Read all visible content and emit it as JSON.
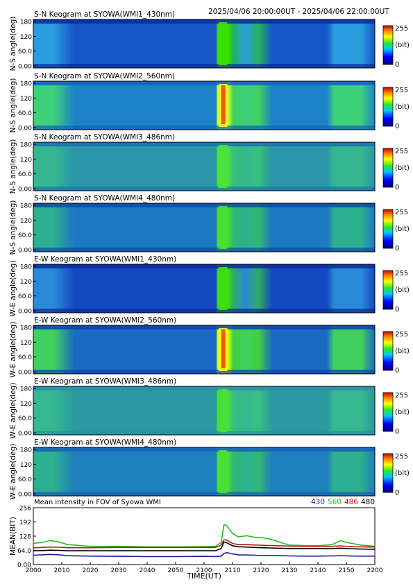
{
  "header": {
    "time_range": "2025/04/06 20:00:00UT - 2025/04/06 22:00:00UT"
  },
  "colorbar": {
    "max_label": "255",
    "unit_label": "(bit)",
    "min_label": "0"
  },
  "keogram_yticks": [
    "180",
    "120",
    "60.0",
    "0.00"
  ],
  "keograms": [
    {
      "title": "S-N Keogram at SYOWA(WMI1_430nm)",
      "ylabel": "N-S angle(deg)"
    },
    {
      "title": "S-N Keogram at SYOWA(WMI2_560nm)",
      "ylabel": "N-S angle(deg)"
    },
    {
      "title": "S-N Keogram at SYOWA(WMI3_486nm)",
      "ylabel": "N-S angle(deg)"
    },
    {
      "title": "S-N Keogram at SYOWA(WMI4_480nm)",
      "ylabel": "N-S angle(deg)"
    },
    {
      "title": "E-W Keogram at SYOWA(WMI1_430nm)",
      "ylabel": "W-E angle(deg)"
    },
    {
      "title": "E-W Keogram at SYOWA(WMI2_560nm)",
      "ylabel": "W-E angle(deg)"
    },
    {
      "title": "E-W Keogram at SYOWA(WMI3_486nm)",
      "ylabel": "W-E angle(deg)"
    },
    {
      "title": "E-W Keogram at SYOWA(WMI4_480nm)",
      "ylabel": "W-E angle(deg)"
    }
  ],
  "chart_data": {
    "type": "line",
    "title": "Mean intensity in FOV of Syowa WMI",
    "xlabel": "TIME(UT)",
    "ylabel": "MEAN(BIT)",
    "x_ticks": [
      "2000",
      "2010",
      "2020",
      "2030",
      "2040",
      "2050",
      "2100",
      "2110",
      "2120",
      "2130",
      "2140",
      "2150",
      "2200"
    ],
    "y_ticks": [
      "256",
      "192",
      "128",
      "64.0",
      "0.00"
    ],
    "xlim": [
      0,
      120
    ],
    "ylim": [
      0,
      256
    ],
    "legend_placement": "top-right",
    "x_minutes": [
      0,
      3,
      6,
      9,
      12,
      20,
      30,
      40,
      50,
      60,
      64,
      66,
      67,
      68,
      70,
      72,
      75,
      78,
      80,
      83,
      85,
      88,
      90,
      95,
      100,
      105,
      108,
      110,
      115,
      120
    ],
    "series": [
      {
        "name": "430",
        "color": "#1a1aa6",
        "values": [
          42,
          44,
          46,
          44,
          40,
          38,
          37,
          36,
          36,
          37,
          36,
          38,
          50,
          54,
          48,
          44,
          43,
          42,
          41,
          40,
          40,
          40,
          39,
          38,
          38,
          39,
          40,
          39,
          38,
          38
        ]
      },
      {
        "name": "560",
        "color": "#1fc01f",
        "values": [
          95,
          100,
          108,
          102,
          90,
          82,
          82,
          80,
          80,
          81,
          82,
          100,
          180,
          175,
          140,
          125,
          130,
          122,
          122,
          115,
          108,
          95,
          88,
          86,
          85,
          90,
          108,
          100,
          88,
          82
        ]
      },
      {
        "name": "486",
        "color": "#c01818",
        "values": [
          75,
          77,
          79,
          78,
          76,
          76,
          77,
          77,
          77,
          77,
          77,
          88,
          112,
          110,
          95,
          90,
          90,
          88,
          87,
          86,
          85,
          84,
          83,
          82,
          82,
          82,
          84,
          82,
          80,
          79
        ]
      },
      {
        "name": "480",
        "color": "#000000",
        "values": [
          62,
          63,
          65,
          64,
          62,
          62,
          62,
          62,
          62,
          62,
          62,
          72,
          102,
          98,
          85,
          80,
          79,
          77,
          76,
          75,
          74,
          73,
          72,
          72,
          72,
          72,
          74,
          72,
          70,
          69
        ]
      }
    ]
  }
}
